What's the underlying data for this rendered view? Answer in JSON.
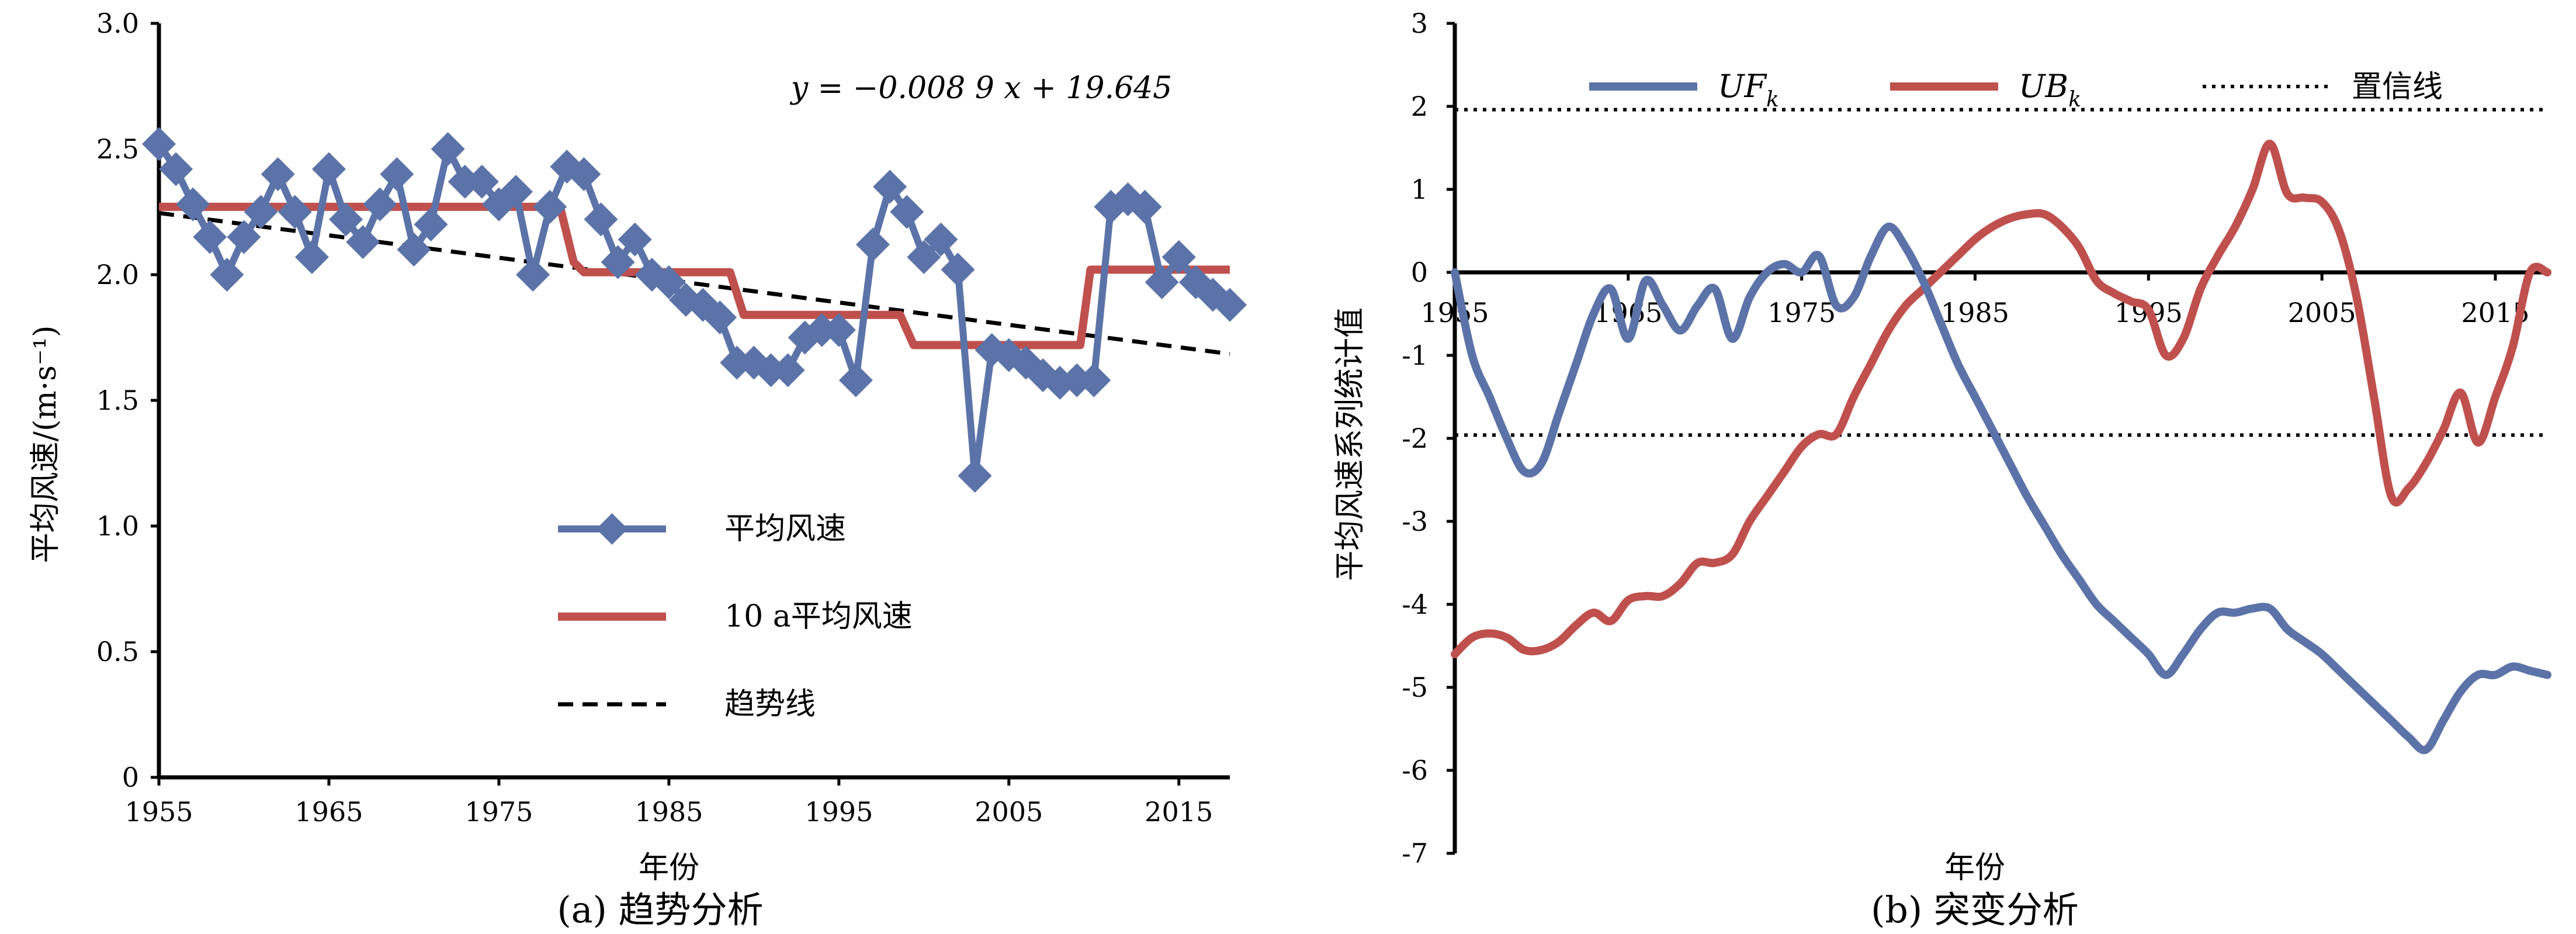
{
  "colors": {
    "blue": "#5b73a8",
    "red": "#c0504d",
    "black": "#000000"
  },
  "panel_a": {
    "caption": "(a) 趋势分析",
    "equation": "y = −0.008 9 x + 19.645"
  },
  "panel_b": {
    "caption": "(b) 突变分析"
  },
  "chart_data": [
    {
      "type": "line",
      "id": "a",
      "title": "(a) 趋势分析",
      "xlabel": "年份",
      "ylabel": "平均风速/(m·s⁻¹)",
      "xlim": [
        1955,
        2018
      ],
      "ylim": [
        0,
        3.0
      ],
      "xticks": [
        1955,
        1965,
        1975,
        1985,
        1995,
        2005,
        2015
      ],
      "xtick_labels": [
        "1955",
        "1965",
        "1975",
        "1985",
        "1995",
        "2005",
        "2015"
      ],
      "yticks": [
        0,
        0.5,
        1.0,
        1.5,
        2.0,
        2.5,
        3.0
      ],
      "ytick_labels": [
        "0",
        "0.5",
        "1.0",
        "1.5",
        "2.0",
        "2.5",
        "3.0"
      ],
      "annotation": "y = −0.008 9 x + 19.645",
      "legend": [
        "平均风速",
        "10  a平均风速",
        "趋势线"
      ],
      "years": [
        1955,
        1956,
        1957,
        1958,
        1959,
        1960,
        1961,
        1962,
        1963,
        1964,
        1965,
        1966,
        1967,
        1968,
        1969,
        1970,
        1971,
        1972,
        1973,
        1974,
        1975,
        1976,
        1977,
        1978,
        1979,
        1980,
        1981,
        1982,
        1983,
        1984,
        1985,
        1986,
        1987,
        1988,
        1989,
        1990,
        1991,
        1992,
        1993,
        1994,
        1995,
        1996,
        1997,
        1998,
        1999,
        2000,
        2001,
        2002,
        2003,
        2004,
        2005,
        2006,
        2007,
        2008,
        2009,
        2010,
        2011,
        2012,
        2013,
        2014,
        2015,
        2016,
        2017,
        2018
      ],
      "series": [
        {
          "name": "平均风速",
          "values": [
            2.52,
            2.42,
            2.28,
            2.15,
            2.0,
            2.15,
            2.25,
            2.4,
            2.25,
            2.07,
            2.42,
            2.22,
            2.13,
            2.28,
            2.4,
            2.1,
            2.2,
            2.5,
            2.37,
            2.37,
            2.28,
            2.33,
            2.0,
            2.27,
            2.43,
            2.4,
            2.22,
            2.05,
            2.14,
            2.0,
            1.97,
            1.9,
            1.88,
            1.83,
            1.65,
            1.65,
            1.62,
            1.62,
            1.75,
            1.78,
            1.78,
            1.58,
            2.12,
            2.35,
            2.25,
            2.07,
            2.14,
            2.02,
            1.2,
            1.7,
            1.68,
            1.65,
            1.6,
            1.57,
            1.58,
            1.58,
            2.27,
            2.3,
            2.27,
            1.97,
            2.07,
            1.97,
            1.92,
            1.88
          ]
        },
        {
          "name": "10  a平均风速",
          "segments": [
            {
              "from": 1955,
              "to": 1979,
              "value": 2.27
            },
            {
              "from": 1980,
              "to": 1988,
              "value": 2.01
            },
            {
              "from": 1990,
              "to": 1998,
              "value": 1.84
            },
            {
              "from": 2000,
              "to": 2009,
              "value": 1.72
            },
            {
              "from": 2010,
              "to": 2018,
              "value": 2.02
            }
          ],
          "raw_points": [
            [
              1955,
              2.27
            ],
            [
              1978.6,
              2.27
            ],
            [
              1979.4,
              2.05
            ],
            [
              1980,
              2.01
            ],
            [
              1988.6,
              2.01
            ],
            [
              1989.4,
              1.84
            ],
            [
              1998.6,
              1.84
            ],
            [
              1999.4,
              1.72
            ],
            [
              2009.2,
              1.72
            ],
            [
              2009.8,
              2.02
            ],
            [
              2018,
              2.02
            ]
          ]
        },
        {
          "name": "趋势线",
          "slope": -0.0089,
          "intercept": 19.645
        }
      ]
    },
    {
      "type": "line",
      "id": "b",
      "title": "(b) 突变分析",
      "xlabel": "年份",
      "ylabel": "平均风速系列统计值",
      "xlim": [
        1955,
        2018
      ],
      "ylim": [
        -7,
        3
      ],
      "xticks": [
        1955,
        1965,
        1975,
        1985,
        1995,
        2005,
        2015
      ],
      "xtick_labels": [
        "1955",
        "1965",
        "1975",
        "1985",
        "1995",
        "2005",
        "2015"
      ],
      "yticks": [
        -7,
        -6,
        -5,
        -4,
        -3,
        -2,
        -1,
        0,
        1,
        2,
        3
      ],
      "ytick_labels": [
        "-7",
        "-6",
        "-5",
        "-4",
        "-3",
        "-2",
        "-1",
        "0",
        "1",
        "2",
        "3"
      ],
      "confidence_level": 1.96,
      "legend": [
        {
          "main": "UF",
          "sub": "k"
        },
        {
          "main": "UB",
          "sub": "k"
        },
        {
          "main": "置信线"
        }
      ],
      "series": [
        {
          "name": "UFk",
          "points": [
            [
              1955,
              0.0
            ],
            [
              1956,
              -1.0
            ],
            [
              1957,
              -1.5
            ],
            [
              1958,
              -2.0
            ],
            [
              1959,
              -2.4
            ],
            [
              1960,
              -2.3
            ],
            [
              1961,
              -1.7
            ],
            [
              1962,
              -1.1
            ],
            [
              1963,
              -0.5
            ],
            [
              1964,
              -0.2
            ],
            [
              1965,
              -0.8
            ],
            [
              1966,
              -0.1
            ],
            [
              1967,
              -0.4
            ],
            [
              1968,
              -0.7
            ],
            [
              1969,
              -0.4
            ],
            [
              1970,
              -0.2
            ],
            [
              1971,
              -0.8
            ],
            [
              1972,
              -0.3
            ],
            [
              1973,
              0.0
            ],
            [
              1974,
              0.1
            ],
            [
              1975,
              0.0
            ],
            [
              1976,
              0.2
            ],
            [
              1977,
              -0.4
            ],
            [
              1978,
              -0.3
            ],
            [
              1979,
              0.2
            ],
            [
              1980,
              0.55
            ],
            [
              1981,
              0.3
            ],
            [
              1982,
              -0.1
            ],
            [
              1983,
              -0.6
            ],
            [
              1984,
              -1.1
            ],
            [
              1985,
              -1.5
            ],
            [
              1986,
              -1.9
            ],
            [
              1987,
              -2.3
            ],
            [
              1988,
              -2.7
            ],
            [
              1989,
              -3.05
            ],
            [
              1990,
              -3.4
            ],
            [
              1991,
              -3.7
            ],
            [
              1992,
              -4.0
            ],
            [
              1993,
              -4.2
            ],
            [
              1994,
              -4.4
            ],
            [
              1995,
              -4.6
            ],
            [
              1996,
              -4.85
            ],
            [
              1997,
              -4.6
            ],
            [
              1998,
              -4.3
            ],
            [
              1999,
              -4.1
            ],
            [
              2000,
              -4.1
            ],
            [
              2001,
              -4.05
            ],
            [
              2002,
              -4.05
            ],
            [
              2003,
              -4.3
            ],
            [
              2004,
              -4.45
            ],
            [
              2005,
              -4.6
            ],
            [
              2006,
              -4.8
            ],
            [
              2007,
              -5.0
            ],
            [
              2008,
              -5.2
            ],
            [
              2009,
              -5.4
            ],
            [
              2010,
              -5.6
            ],
            [
              2011,
              -5.75
            ],
            [
              2012,
              -5.4
            ],
            [
              2013,
              -5.05
            ],
            [
              2014,
              -4.85
            ],
            [
              2015,
              -4.85
            ],
            [
              2016,
              -4.75
            ],
            [
              2017,
              -4.8
            ],
            [
              2018,
              -4.85
            ]
          ]
        },
        {
          "name": "UBk",
          "points": [
            [
              1955,
              -4.6
            ],
            [
              1956,
              -4.4
            ],
            [
              1957,
              -4.35
            ],
            [
              1958,
              -4.4
            ],
            [
              1959,
              -4.55
            ],
            [
              1960,
              -4.55
            ],
            [
              1961,
              -4.45
            ],
            [
              1962,
              -4.25
            ],
            [
              1963,
              -4.1
            ],
            [
              1964,
              -4.2
            ],
            [
              1965,
              -3.95
            ],
            [
              1966,
              -3.9
            ],
            [
              1967,
              -3.9
            ],
            [
              1968,
              -3.75
            ],
            [
              1969,
              -3.5
            ],
            [
              1970,
              -3.5
            ],
            [
              1971,
              -3.4
            ],
            [
              1972,
              -3.0
            ],
            [
              1973,
              -2.7
            ],
            [
              1974,
              -2.4
            ],
            [
              1975,
              -2.1
            ],
            [
              1976,
              -1.95
            ],
            [
              1977,
              -1.95
            ],
            [
              1978,
              -1.5
            ],
            [
              1979,
              -1.1
            ],
            [
              1980,
              -0.7
            ],
            [
              1981,
              -0.4
            ],
            [
              1982,
              -0.2
            ],
            [
              1983,
              0.0
            ],
            [
              1984,
              0.2
            ],
            [
              1985,
              0.4
            ],
            [
              1986,
              0.55
            ],
            [
              1987,
              0.65
            ],
            [
              1988,
              0.7
            ],
            [
              1989,
              0.7
            ],
            [
              1990,
              0.55
            ],
            [
              1991,
              0.3
            ],
            [
              1992,
              -0.1
            ],
            [
              1993,
              -0.25
            ],
            [
              1994,
              -0.35
            ],
            [
              1995,
              -0.45
            ],
            [
              1996,
              -1.0
            ],
            [
              1997,
              -0.8
            ],
            [
              1998,
              -0.2
            ],
            [
              1999,
              0.2
            ],
            [
              2000,
              0.55
            ],
            [
              2001,
              1.0
            ],
            [
              2002,
              1.55
            ],
            [
              2003,
              0.95
            ],
            [
              2004,
              0.9
            ],
            [
              2005,
              0.85
            ],
            [
              2006,
              0.5
            ],
            [
              2007,
              -0.3
            ],
            [
              2008,
              -1.5
            ],
            [
              2009,
              -2.7
            ],
            [
              2010,
              -2.6
            ],
            [
              2011,
              -2.3
            ],
            [
              2012,
              -1.9
            ],
            [
              2013,
              -1.45
            ],
            [
              2014,
              -2.05
            ],
            [
              2015,
              -1.5
            ],
            [
              2016,
              -0.9
            ],
            [
              2017,
              0.0
            ],
            [
              2018,
              0.0
            ]
          ]
        }
      ]
    }
  ]
}
